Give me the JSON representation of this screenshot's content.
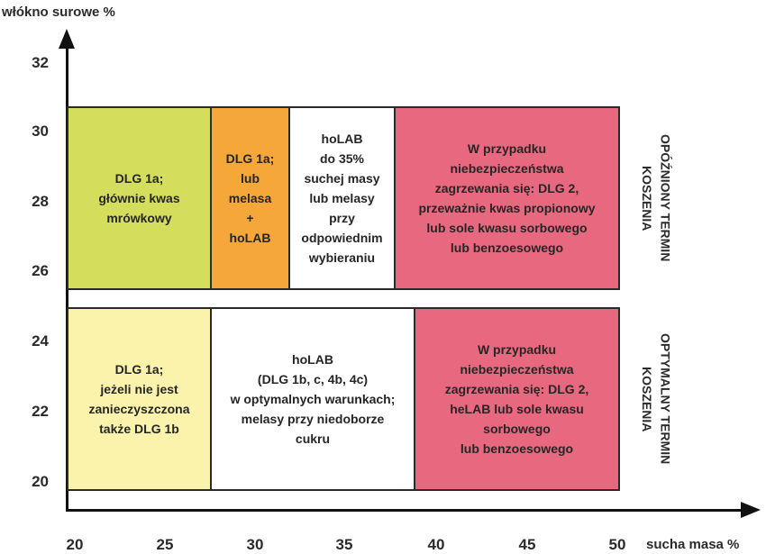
{
  "axes": {
    "y_label": "włókno surowe %",
    "x_label": "sucha masa %",
    "y_ticks": [
      "32",
      "30",
      "28",
      "26",
      "24",
      "22",
      "20"
    ],
    "x_ticks": [
      "20",
      "25",
      "30",
      "35",
      "40",
      "45",
      "50"
    ]
  },
  "rows": {
    "top_label": "OPÓŹNIONY TERMIN\nKOSZENIA",
    "bottom_label": "OPTYMALNY TERMIN\nKOSZENIA"
  },
  "cells": {
    "top_1": {
      "text": "DLG 1a;\ngłównie kwas\nmrówkowy",
      "color": "#d4de5c"
    },
    "top_2": {
      "text": "DLG 1a;\nlub\nmelasa\n+\nhoLAB",
      "color": "#f6a73a"
    },
    "top_3": {
      "text": "hoLAB\ndo 35%\nsuchej masy\nlub melasy\nprzy\nodpowiednim\nwybieraniu",
      "color": "#ffffff"
    },
    "top_4": {
      "text": "W przypadku\nniebezpieczeństwa\nzagrzewania się: DLG 2,\nprzeważnie kwas propionowy\nlub sole kwasu sorbowego\nlub benzoesowego",
      "color": "#e8687f"
    },
    "bottom_1": {
      "text": "DLG 1a;\njeżeli nie jest\nzanieczyszczona\ntakże DLG 1b",
      "color": "#fbf3ab"
    },
    "bottom_2": {
      "text": "hoLAB\n(DLG 1b, c, 4b, 4c)\nw optymalnych warunkach;\nmelasy przy niedoborze\ncukru",
      "color": "#ffffff"
    },
    "bottom_3": {
      "text": "W przypadku\nniebezpieczeństwa\nzagrzewania się: DLG 2,\nheLAB lub sole kwasu\nsorbowego\nlub benzoesowego",
      "color": "#e8687f"
    }
  }
}
